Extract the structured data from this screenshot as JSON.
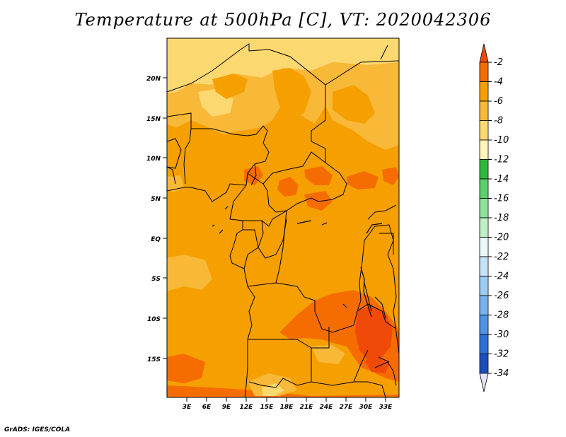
{
  "title": "Temperature at 500hPa [C], VT: 2020042306",
  "credit": "GrADS: IGES/COLA",
  "map": {
    "lat_labels": [
      "20N",
      "15N",
      "10N",
      "5N",
      "EQ",
      "5S",
      "10S",
      "15S"
    ],
    "lon_labels": [
      "3E",
      "6E",
      "9E",
      "12E",
      "15E",
      "18E",
      "21E",
      "24E",
      "27E",
      "30E",
      "33E"
    ],
    "lon_range": [
      0,
      35
    ],
    "lat_range": [
      -20,
      25
    ]
  },
  "colorbar": {
    "labels": [
      "-2",
      "-4",
      "-6",
      "-8",
      "-10",
      "-12",
      "-14",
      "-16",
      "-18",
      "-20",
      "-22",
      "-24",
      "-26",
      "-28",
      "-30",
      "-32",
      "-34"
    ],
    "colors": [
      "#f04a08",
      "#f56d00",
      "#f5a000",
      "#f8b838",
      "#fcd870",
      "#fff4b8",
      "#2fb93c",
      "#5ad16b",
      "#8ee29a",
      "#bff0c5",
      "#eaf9f8",
      "#c4e3f7",
      "#9cccf4",
      "#76b2ee",
      "#4f93e4",
      "#2e71d4",
      "#1b4fbd",
      "#0b2d9a",
      "#0a1070",
      "#e4e4f8"
    ]
  },
  "palette": {
    "base": "#f5a000",
    "warm": "#f56d00",
    "hot": "#f04a08",
    "cool": "#f8b838",
    "pale": "#fcd870"
  }
}
